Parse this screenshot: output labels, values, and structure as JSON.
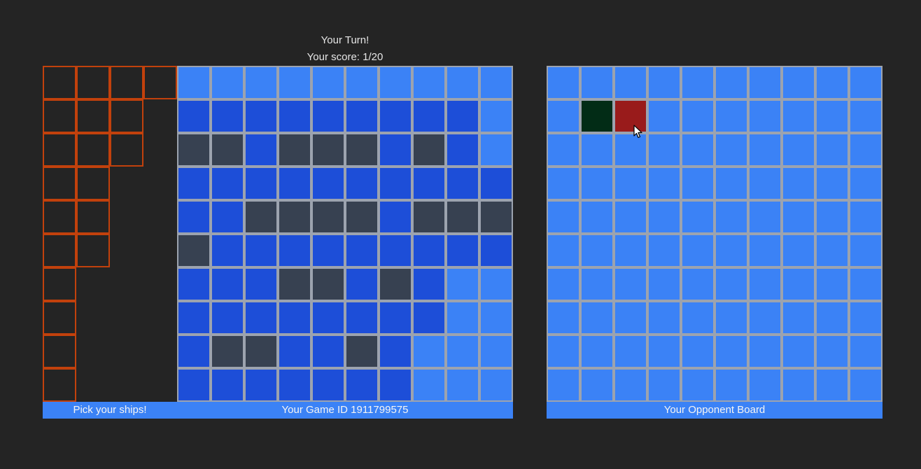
{
  "status": {
    "turn": "Your Turn!",
    "score": "Your score: 1/20"
  },
  "picker": {
    "label": "Pick your ships!",
    "ships": [
      4,
      3,
      3,
      2,
      2,
      2,
      1,
      1,
      1,
      1
    ]
  },
  "my_board": {
    "footer": "Your Game ID 1911799575",
    "legend": {
      "L": "light-water",
      "D": "dark-water",
      "S": "ship"
    },
    "rows": [
      "LLLLLLLLLL",
      "DDDDDDDDDL",
      "SSDSSSDSDL",
      "DDDDDDDDDD",
      "DDSSSSDSSS",
      "SDDDDDDDDD",
      "DDDSSDSDLL",
      "DDDDDDDDLL",
      "DSSDDSDLLL",
      "DDDDDDDLLL"
    ]
  },
  "opp_board": {
    "footer": "Your Opponent Board",
    "marks": [
      {
        "row": 1,
        "col": 1,
        "state": "miss"
      },
      {
        "row": 1,
        "col": 2,
        "state": "hit"
      }
    ]
  },
  "colors": {
    "light-water": "#3b82f6",
    "dark-water": "#1d4ed8",
    "ship": "#374151",
    "miss": "#022c16",
    "hit": "#991b1b",
    "grid": "#9ca3af",
    "picker-border": "#c2410c"
  },
  "icons": {
    "cursor": "mouse-pointer-icon"
  }
}
